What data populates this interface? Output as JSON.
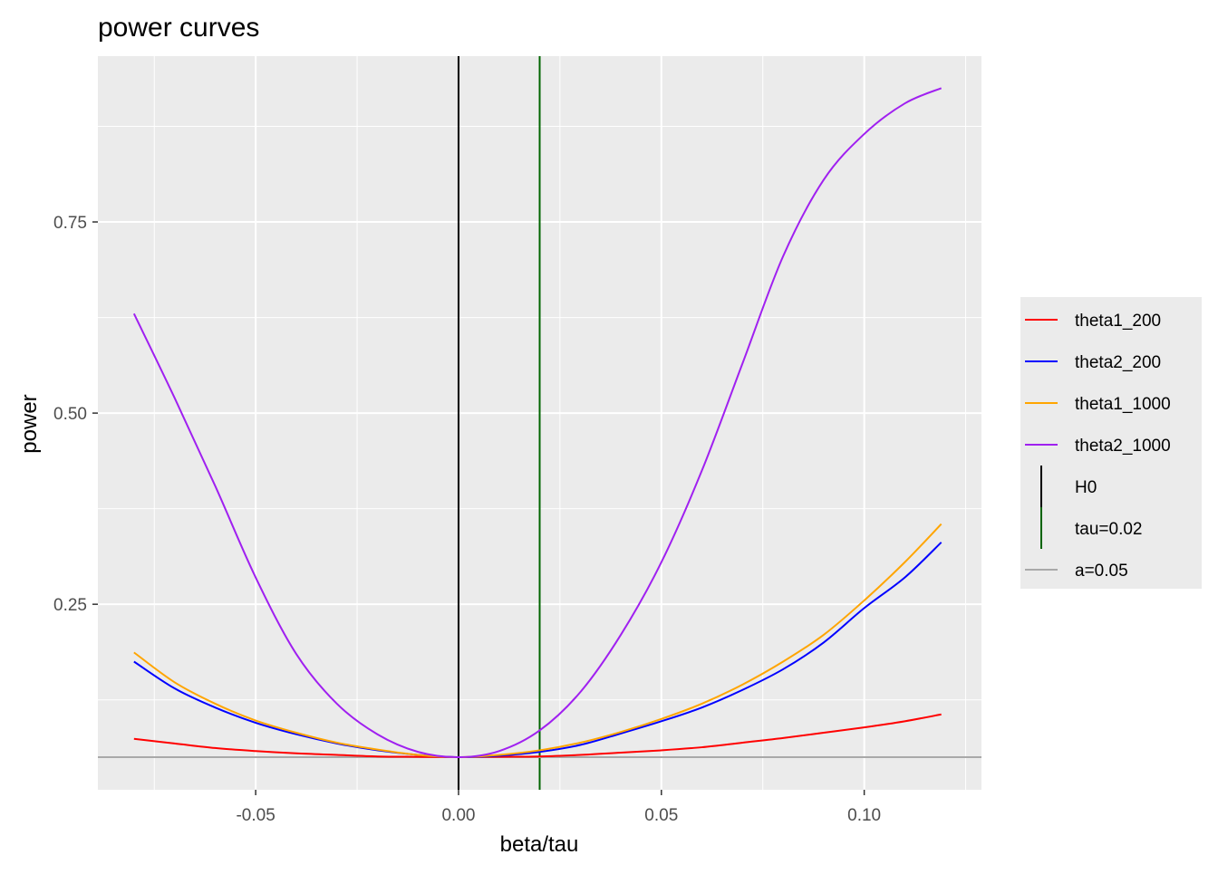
{
  "chart_data": {
    "type": "line",
    "title": "power curves",
    "xlabel": "beta/tau",
    "ylabel": "power",
    "xlim": [
      -0.0889,
      0.1289
    ],
    "ylim": [
      0.0074,
      0.9668
    ],
    "x_ticks": [
      -0.05,
      0.0,
      0.05,
      0.1
    ],
    "x_tick_labels": [
      "-0.05",
      "0.00",
      "0.05",
      "0.10"
    ],
    "y_ticks": [
      0.25,
      0.5,
      0.75
    ],
    "y_tick_labels": [
      "0.25",
      "0.50",
      "0.75"
    ],
    "x_minor_ticks": [
      -0.075,
      -0.025,
      0.025,
      0.075,
      0.125
    ],
    "y_minor_ticks": [
      0.125,
      0.375,
      0.625,
      0.875
    ],
    "grid": true,
    "legend_position": "right",
    "colors": {
      "panel_background": "#EBEBEB",
      "grid": "#FFFFFF",
      "axis_text": "#4D4D4D",
      "theta1_200": "#FF0000",
      "theta2_200": "#0000FF",
      "theta1_1000": "#FFA500",
      "theta2_1000": "#A020F0",
      "H0": "#000000",
      "tau": "#006400",
      "alpha": "#A9A9A9"
    },
    "x": [
      -0.08,
      -0.07,
      -0.06,
      -0.05,
      -0.04,
      -0.03,
      -0.02,
      -0.01,
      0.0,
      0.01,
      0.02,
      0.03,
      0.04,
      0.05,
      0.06,
      0.07,
      0.08,
      0.09,
      0.1,
      0.11,
      0.119
    ],
    "series": [
      {
        "name": "theta1_200",
        "color": "#FF0000",
        "values": [
          0.074,
          0.068,
          0.062,
          0.058,
          0.055,
          0.053,
          0.051,
          0.0505,
          0.05,
          0.0505,
          0.051,
          0.053,
          0.056,
          0.059,
          0.063,
          0.069,
          0.075,
          0.082,
          0.089,
          0.097,
          0.106
        ]
      },
      {
        "name": "theta2_200",
        "color": "#0000FF",
        "values": [
          0.175,
          0.14,
          0.115,
          0.095,
          0.08,
          0.068,
          0.059,
          0.053,
          0.05,
          0.052,
          0.057,
          0.066,
          0.081,
          0.097,
          0.115,
          0.138,
          0.165,
          0.2,
          0.245,
          0.285,
          0.331
        ]
      },
      {
        "name": "theta1_1000",
        "color": "#FFA500",
        "values": [
          0.187,
          0.148,
          0.12,
          0.098,
          0.082,
          0.069,
          0.06,
          0.053,
          0.05,
          0.053,
          0.059,
          0.069,
          0.083,
          0.1,
          0.12,
          0.145,
          0.175,
          0.21,
          0.255,
          0.305,
          0.355
        ]
      },
      {
        "name": "theta2_1000",
        "color": "#A020F0",
        "values": [
          0.63,
          0.52,
          0.405,
          0.285,
          0.185,
          0.12,
          0.08,
          0.057,
          0.05,
          0.058,
          0.085,
          0.135,
          0.21,
          0.305,
          0.425,
          0.565,
          0.705,
          0.805,
          0.865,
          0.905,
          0.925
        ]
      }
    ],
    "reference_lines": [
      {
        "name": "H0",
        "orientation": "vertical",
        "value": 0.0,
        "color": "#000000"
      },
      {
        "name": "tau=0.02",
        "orientation": "vertical",
        "value": 0.02,
        "color": "#006400"
      },
      {
        "name": "a=0.05",
        "orientation": "horizontal",
        "value": 0.05,
        "color": "#A9A9A9"
      }
    ],
    "legend": [
      {
        "label": "theta1_200",
        "color": "#FF0000",
        "glyph": "hline"
      },
      {
        "label": "theta2_200",
        "color": "#0000FF",
        "glyph": "hline"
      },
      {
        "label": "theta1_1000",
        "color": "#FFA500",
        "glyph": "hline"
      },
      {
        "label": "theta2_1000",
        "color": "#A020F0",
        "glyph": "hline"
      },
      {
        "label": "H0",
        "color": "#000000",
        "glyph": "vline"
      },
      {
        "label": "tau=0.02",
        "color": "#006400",
        "glyph": "vline"
      },
      {
        "label": "a=0.05",
        "color": "#A9A9A9",
        "glyph": "hline"
      }
    ]
  }
}
